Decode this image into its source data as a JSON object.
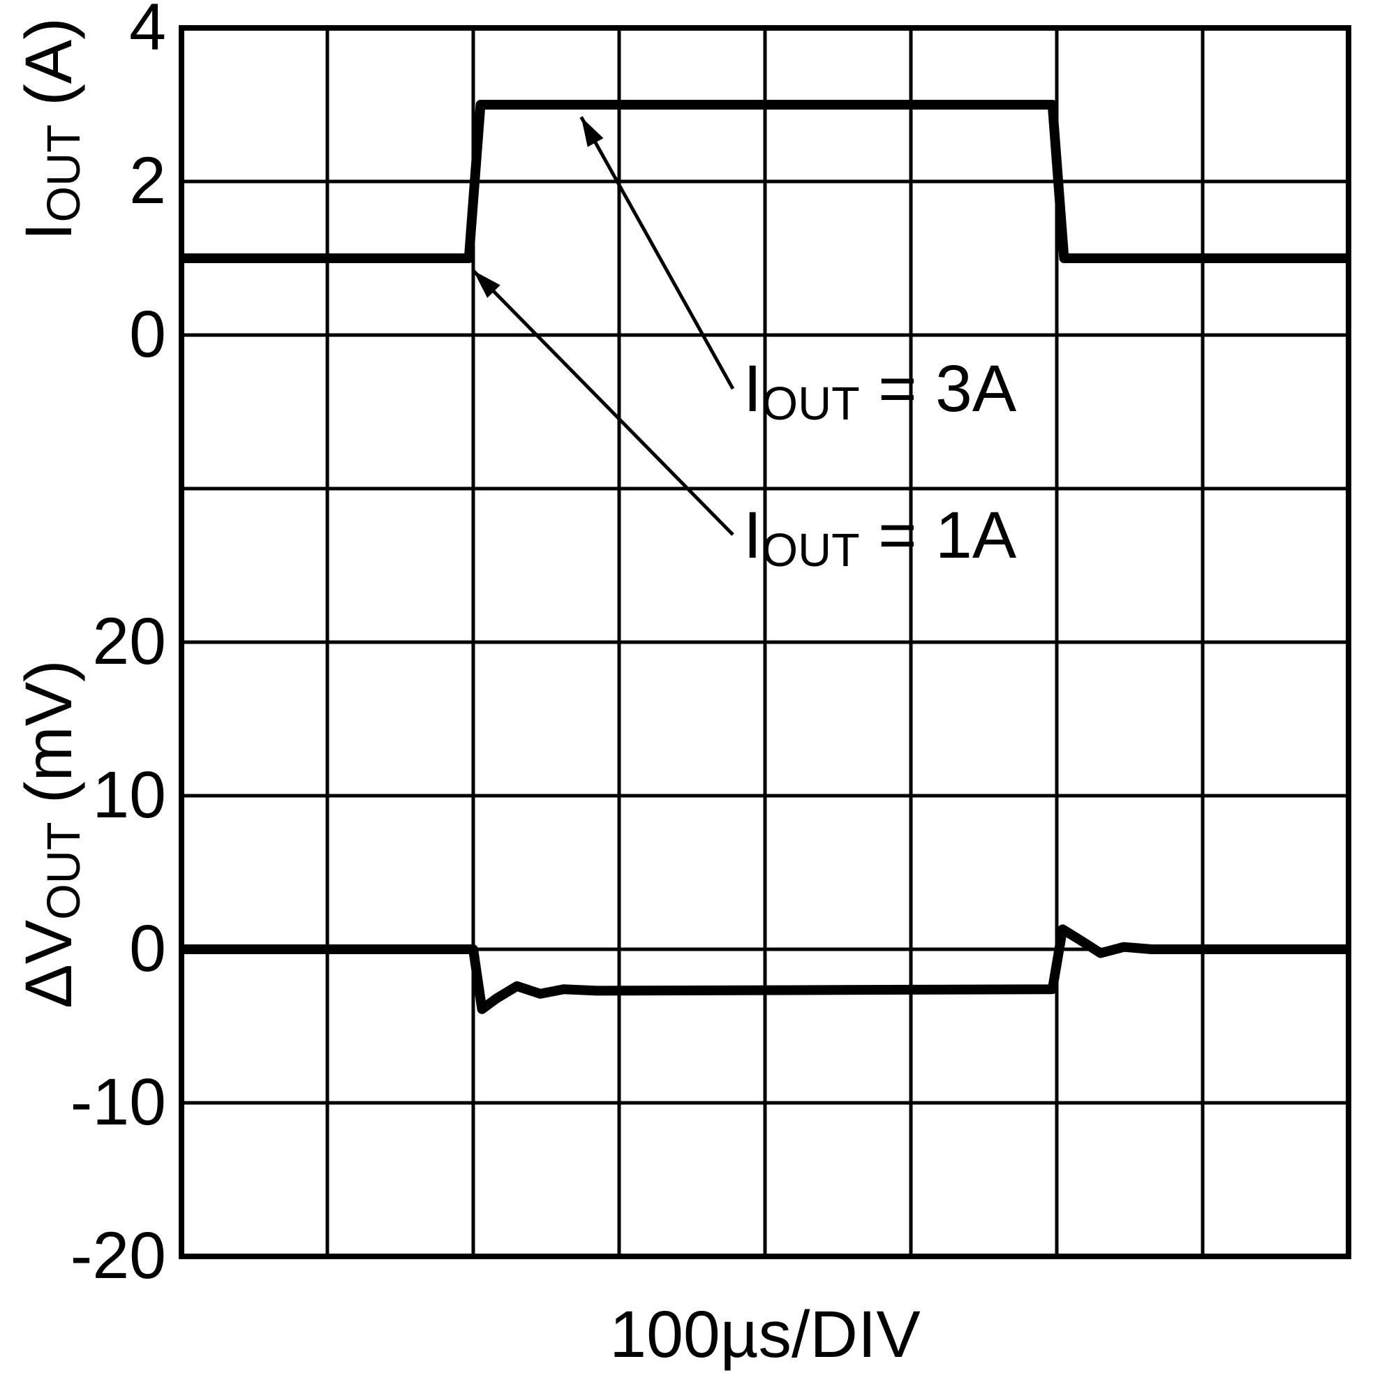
{
  "chart_data": {
    "type": "line",
    "title": "",
    "background": "#ffffff",
    "line_color": "#000000",
    "x_axis": {
      "label": "100µs/DIV",
      "divisions": 8,
      "per_division": "100µs"
    },
    "grid": {
      "rows": 8,
      "cols": 8,
      "line_color": "#000000"
    },
    "panels": [
      {
        "name": "output-current",
        "ylabel": "IOUT (A)",
        "ylabel_parts": {
          "base": "I",
          "sub": "OUT",
          "rest": " (A)"
        },
        "units": "A",
        "units_per_division": 2,
        "ticks": [
          {
            "label": "4",
            "row": 0
          },
          {
            "label": "2",
            "row": 1
          },
          {
            "label": "0",
            "row": 2
          }
        ],
        "series": [
          {
            "name": "IOUT",
            "zero_row": 2,
            "units_per_division": 2,
            "points": [
              [
                0,
                1
              ],
              [
                1.97,
                1
              ],
              [
                2.05,
                3
              ],
              [
                5.97,
                3
              ],
              [
                6.05,
                1
              ],
              [
                8,
                1
              ]
            ]
          }
        ]
      },
      {
        "name": "output-voltage-deviation",
        "ylabel": "ΔVOUT (mV)",
        "ylabel_parts": {
          "base": "ΔV",
          "sub": "OUT",
          "rest": " (mV)"
        },
        "units": "mV",
        "units_per_division": 10,
        "ticks": [
          {
            "label": "20",
            "row": 4
          },
          {
            "label": "10",
            "row": 5
          },
          {
            "label": "0",
            "row": 6
          },
          {
            "label": "-10",
            "row": 7
          },
          {
            "label": "-20",
            "row": 8
          }
        ],
        "series": [
          {
            "name": "dVOUT",
            "zero_row": 6,
            "units_per_division": 10,
            "points": [
              [
                0,
                0
              ],
              [
                2.0,
                0
              ],
              [
                2.06,
                -3.9
              ],
              [
                2.16,
                -3.2
              ],
              [
                2.3,
                -2.4
              ],
              [
                2.46,
                -2.9
              ],
              [
                2.62,
                -2.6
              ],
              [
                2.85,
                -2.7
              ],
              [
                4.5,
                -2.65
              ],
              [
                5.97,
                -2.6
              ],
              [
                6.04,
                1.3
              ],
              [
                6.16,
                0.6
              ],
              [
                6.3,
                -0.25
              ],
              [
                6.46,
                0.15
              ],
              [
                6.65,
                0
              ],
              [
                8,
                0
              ]
            ]
          }
        ]
      }
    ],
    "annotations": [
      {
        "text": "IOUT = 3A",
        "base": "I",
        "sub": "OUT",
        "rest": " = 3A",
        "arrow": {
          "from_div": [
            3.78,
            2.35
          ],
          "to_div": [
            2.74,
            0.58
          ]
        }
      },
      {
        "text": "IOUT = 1A",
        "base": "I",
        "sub": "OUT",
        "rest": " = 1A",
        "arrow": {
          "from_div": [
            3.78,
            3.3
          ],
          "to_div": [
            2.0,
            1.58
          ]
        }
      }
    ]
  }
}
